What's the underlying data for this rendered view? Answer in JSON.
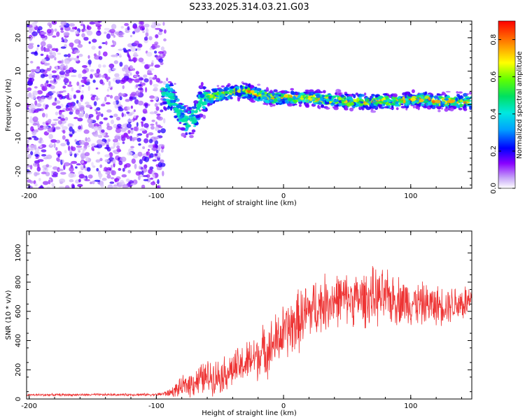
{
  "title": "S233.2025.314.03.21.G03",
  "chart_data": [
    {
      "type": "heatmap",
      "name": "spectrogram",
      "xlabel": "Height of straight line (km)",
      "ylabel": "Frequency (Hz)",
      "xlim": [
        -202,
        148
      ],
      "ylim": [
        -25,
        25
      ],
      "xticks": [
        -200,
        -100,
        0,
        100
      ],
      "xtick_labels": [
        "-200",
        "-100",
        "0",
        "100"
      ],
      "yticks": [
        -20,
        -10,
        0,
        10,
        20
      ],
      "ytick_labels": [
        "-20",
        "-10",
        "0",
        "10",
        "20"
      ],
      "noise_region": [
        -202,
        -93
      ],
      "signal_ridge": {
        "x": [
          -95,
          -88,
          -82,
          -76,
          -70,
          -65,
          -60,
          -50,
          -40,
          -30,
          -20,
          -10,
          0,
          10,
          20,
          30,
          40,
          50,
          60,
          70,
          80,
          90,
          100,
          110,
          120,
          130,
          140,
          148
        ],
        "freq": [
          3,
          2,
          -2,
          -5,
          -4,
          1,
          2,
          3,
          4,
          4,
          3,
          2,
          2,
          2,
          2,
          1.5,
          1.5,
          1,
          1,
          1,
          1,
          1,
          1.5,
          1.5,
          1,
          1,
          1,
          1
        ]
      },
      "colorbar": {
        "label": "Normalized spectral amplitude",
        "range": [
          0,
          0.9
        ],
        "ticks": [
          0.0,
          0.2,
          0.4,
          0.6,
          0.8
        ],
        "tick_labels": [
          "0.0",
          "0.2",
          "0.4",
          "0.6",
          "0.8"
        ]
      }
    },
    {
      "type": "line",
      "name": "snr",
      "xlabel": "Height of straight line (km)",
      "ylabel": "SNR (10 * v/v)",
      "xlim": [
        -202,
        148
      ],
      "ylim": [
        0,
        1150
      ],
      "xticks": [
        -200,
        -100,
        0,
        100
      ],
      "xtick_labels": [
        "-200",
        "-100",
        "0",
        "100"
      ],
      "yticks": [
        0,
        200,
        400,
        600,
        800,
        1000
      ],
      "ytick_labels": [
        "0",
        "200",
        "400",
        "600",
        "800",
        "1000"
      ],
      "line_color": "#ee3333",
      "envelope_x": [
        -202,
        -100,
        -90,
        -80,
        -70,
        -60,
        -50,
        -40,
        -30,
        -20,
        -10,
        0,
        10,
        20,
        30,
        40,
        50,
        60,
        70,
        80,
        90,
        100,
        110,
        120,
        130,
        140,
        148
      ],
      "envelope_mean": [
        28,
        30,
        40,
        80,
        120,
        150,
        160,
        200,
        240,
        300,
        360,
        450,
        520,
        600,
        650,
        680,
        690,
        680,
        700,
        690,
        680,
        660,
        650,
        640,
        650,
        660,
        660
      ],
      "envelope_spread": [
        10,
        10,
        30,
        80,
        120,
        140,
        140,
        150,
        170,
        200,
        220,
        230,
        250,
        250,
        230,
        220,
        200,
        220,
        230,
        220,
        200,
        180,
        170,
        160,
        150,
        160,
        160
      ]
    }
  ]
}
